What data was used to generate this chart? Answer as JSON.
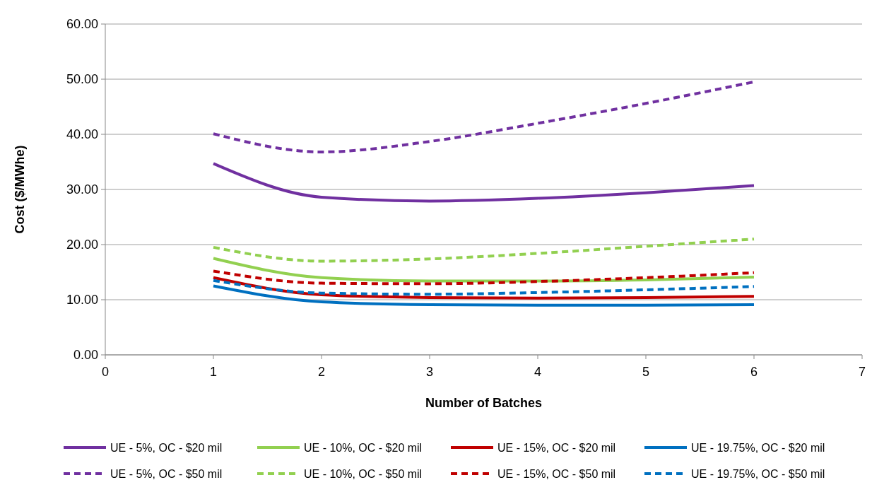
{
  "chart_data": {
    "type": "line",
    "xlabel": "Number of Batches",
    "ylabel": "Cost ($/MWhe)",
    "x": [
      1,
      2,
      3,
      4,
      5,
      6
    ],
    "xlim": [
      0,
      7
    ],
    "xticks": [
      0,
      1,
      2,
      3,
      4,
      5,
      6,
      7
    ],
    "ylim": [
      0,
      60
    ],
    "yticks": [
      {
        "value": 0,
        "label": "0.00"
      },
      {
        "value": 10,
        "label": "10.00"
      },
      {
        "value": 20,
        "label": "20.00"
      },
      {
        "value": 30,
        "label": "30.00"
      },
      {
        "value": 40,
        "label": "40.00"
      },
      {
        "value": 50,
        "label": "50.00"
      },
      {
        "value": 60,
        "label": "60.00"
      }
    ],
    "grid": "y",
    "legend": "bottom",
    "marker": "none",
    "series": [
      {
        "name": "UE - 5%, OC - $20 mil",
        "color": "#7030a0",
        "line_style": "solid",
        "values": [
          34.7,
          28.6,
          27.9,
          28.4,
          29.4,
          30.7
        ]
      },
      {
        "name": "UE - 10%, OC - $20 mil",
        "color": "#92d050",
        "line_style": "solid",
        "values": [
          17.5,
          14.0,
          13.4,
          13.4,
          13.6,
          14.1
        ]
      },
      {
        "name": "UE - 15%, OC - $20 mil",
        "color": "#c00000",
        "line_style": "solid",
        "values": [
          14.0,
          10.9,
          10.4,
          10.3,
          10.4,
          10.6
        ]
      },
      {
        "name": "UE - 19.75%, OC - $20 mil",
        "color": "#0070c0",
        "line_style": "solid",
        "values": [
          12.5,
          9.6,
          9.1,
          9.0,
          9.0,
          9.1
        ]
      },
      {
        "name": "UE - 5%, OC - $50 mil",
        "color": "#7030a0",
        "line_style": "dashed",
        "values": [
          40.1,
          36.8,
          38.7,
          42.0,
          45.6,
          49.5
        ]
      },
      {
        "name": "UE - 10%, OC - $50 mil",
        "color": "#92d050",
        "line_style": "dashed",
        "values": [
          19.5,
          17.0,
          17.4,
          18.4,
          19.7,
          21.0
        ]
      },
      {
        "name": "UE - 15%, OC - $50 mil",
        "color": "#c00000",
        "line_style": "dashed",
        "values": [
          15.2,
          13.0,
          12.9,
          13.3,
          14.0,
          14.9
        ]
      },
      {
        "name": "UE - 19.75%, OC - $50 mil",
        "color": "#0070c0",
        "line_style": "dashed",
        "values": [
          13.5,
          11.2,
          11.0,
          11.3,
          11.8,
          12.4
        ]
      }
    ]
  }
}
